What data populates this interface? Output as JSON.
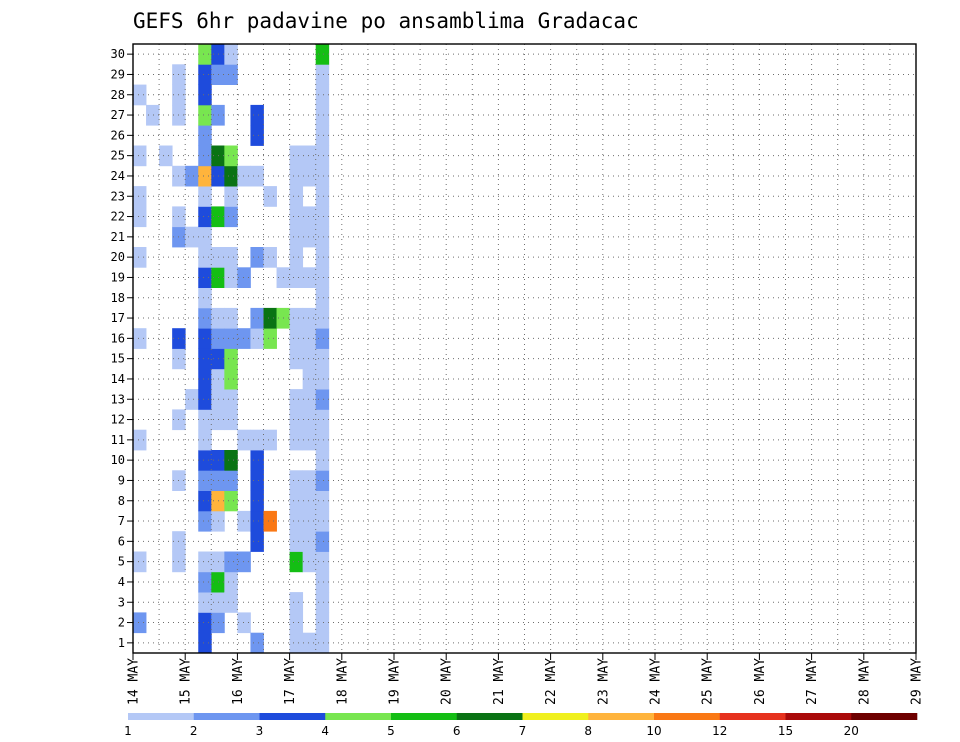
{
  "chart_data": {
    "type": "heatmap",
    "title": "GEFS 6hr padavine po ansamblima Gradacac",
    "xlabel": "",
    "ylabel": "",
    "x_tick_labels": [
      "14 MAY",
      "15 MAY",
      "16 MAY",
      "17 MAY",
      "18 MAY",
      "19 MAY",
      "20 MAY",
      "21 MAY",
      "22 MAY",
      "23 MAY",
      "24 MAY",
      "25 MAY",
      "26 MAY",
      "27 MAY",
      "28 MAY",
      "29 MAY"
    ],
    "y_tick_labels": [
      "1",
      "2",
      "3",
      "4",
      "5",
      "6",
      "7",
      "8",
      "9",
      "10",
      "11",
      "12",
      "13",
      "14",
      "15",
      "16",
      "17",
      "18",
      "19",
      "20",
      "21",
      "22",
      "23",
      "24",
      "25",
      "26",
      "27",
      "28",
      "29",
      "30"
    ],
    "y_range": [
      1,
      30
    ],
    "grid": true,
    "colorbar": {
      "position": "bottom",
      "labels": [
        "1",
        "2",
        "3",
        "4",
        "5",
        "6",
        "7",
        "8",
        "10",
        "12",
        "15",
        "20"
      ],
      "colors": [
        "#b4c8f6",
        "#6e96f0",
        "#1e4bdc",
        "#78e650",
        "#14be14",
        "#0a7314",
        "#f0f01e",
        "#ffb43c",
        "#fa7814",
        "#e6321e",
        "#aa0a0a",
        "#6e0000"
      ]
    },
    "cells": [
      [
        0,
        2,
        2
      ],
      [
        0,
        5,
        1
      ],
      [
        0,
        11,
        1
      ],
      [
        0,
        16,
        1
      ],
      [
        0,
        20,
        1
      ],
      [
        0,
        22,
        1
      ],
      [
        0,
        23,
        1
      ],
      [
        0,
        25,
        1
      ],
      [
        0,
        28,
        1
      ],
      [
        1,
        27,
        1
      ],
      [
        2,
        25,
        1
      ],
      [
        3,
        5,
        1
      ],
      [
        3,
        6,
        1
      ],
      [
        3,
        9,
        1
      ],
      [
        3,
        12,
        1
      ],
      [
        3,
        15,
        1
      ],
      [
        3,
        16,
        3
      ],
      [
        3,
        21,
        2
      ],
      [
        3,
        22,
        1
      ],
      [
        3,
        24,
        1
      ],
      [
        3,
        27,
        1
      ],
      [
        3,
        28,
        1
      ],
      [
        3,
        29,
        1
      ],
      [
        4,
        13,
        1
      ],
      [
        4,
        21,
        1
      ],
      [
        4,
        24,
        2
      ],
      [
        5,
        1,
        3
      ],
      [
        5,
        2,
        3
      ],
      [
        5,
        3,
        1
      ],
      [
        5,
        4,
        2
      ],
      [
        5,
        5,
        1
      ],
      [
        5,
        7,
        2
      ],
      [
        5,
        8,
        3
      ],
      [
        5,
        9,
        2
      ],
      [
        5,
        10,
        3
      ],
      [
        5,
        11,
        1
      ],
      [
        5,
        12,
        1
      ],
      [
        5,
        13,
        3
      ],
      [
        5,
        14,
        3
      ],
      [
        5,
        15,
        3
      ],
      [
        5,
        16,
        3
      ],
      [
        5,
        17,
        2
      ],
      [
        5,
        18,
        1
      ],
      [
        5,
        19,
        3
      ],
      [
        5,
        20,
        1
      ],
      [
        5,
        21,
        1
      ],
      [
        5,
        22,
        3
      ],
      [
        5,
        23,
        1
      ],
      [
        5,
        24,
        8
      ],
      [
        5,
        25,
        2
      ],
      [
        5,
        26,
        2
      ],
      [
        5,
        27,
        4
      ],
      [
        5,
        28,
        3
      ],
      [
        5,
        29,
        3
      ],
      [
        5,
        30,
        4
      ],
      [
        6,
        2,
        2
      ],
      [
        6,
        3,
        1
      ],
      [
        6,
        4,
        5
      ],
      [
        6,
        5,
        1
      ],
      [
        6,
        7,
        1
      ],
      [
        6,
        8,
        8
      ],
      [
        6,
        9,
        2
      ],
      [
        6,
        10,
        3
      ],
      [
        6,
        12,
        1
      ],
      [
        6,
        13,
        1
      ],
      [
        6,
        14,
        1
      ],
      [
        6,
        15,
        3
      ],
      [
        6,
        16,
        2
      ],
      [
        6,
        17,
        1
      ],
      [
        6,
        19,
        5
      ],
      [
        6,
        20,
        1
      ],
      [
        6,
        22,
        5
      ],
      [
        6,
        24,
        3
      ],
      [
        6,
        25,
        6
      ],
      [
        6,
        27,
        2
      ],
      [
        6,
        29,
        2
      ],
      [
        6,
        30,
        3
      ],
      [
        7,
        3,
        1
      ],
      [
        7,
        4,
        1
      ],
      [
        7,
        5,
        2
      ],
      [
        7,
        8,
        4
      ],
      [
        7,
        9,
        2
      ],
      [
        7,
        10,
        6
      ],
      [
        7,
        12,
        1
      ],
      [
        7,
        13,
        1
      ],
      [
        7,
        14,
        4
      ],
      [
        7,
        15,
        4
      ],
      [
        7,
        16,
        2
      ],
      [
        7,
        17,
        1
      ],
      [
        7,
        19,
        1
      ],
      [
        7,
        20,
        1
      ],
      [
        7,
        22,
        2
      ],
      [
        7,
        23,
        1
      ],
      [
        7,
        24,
        6
      ],
      [
        7,
        25,
        4
      ],
      [
        7,
        29,
        2
      ],
      [
        7,
        30,
        1
      ],
      [
        8,
        2,
        1
      ],
      [
        8,
        5,
        2
      ],
      [
        8,
        7,
        1
      ],
      [
        8,
        11,
        1
      ],
      [
        8,
        16,
        2
      ],
      [
        8,
        19,
        2
      ],
      [
        8,
        24,
        1
      ],
      [
        9,
        1,
        2
      ],
      [
        9,
        6,
        3
      ],
      [
        9,
        7,
        3
      ],
      [
        9,
        8,
        3
      ],
      [
        9,
        9,
        3
      ],
      [
        9,
        10,
        3
      ],
      [
        9,
        11,
        1
      ],
      [
        9,
        16,
        1
      ],
      [
        9,
        17,
        2
      ],
      [
        9,
        20,
        2
      ],
      [
        9,
        24,
        1
      ],
      [
        9,
        26,
        3
      ],
      [
        9,
        27,
        3
      ],
      [
        10,
        7,
        9
      ],
      [
        10,
        11,
        1
      ],
      [
        10,
        16,
        4
      ],
      [
        10,
        17,
        6
      ],
      [
        10,
        20,
        1
      ],
      [
        10,
        23,
        1
      ],
      [
        11,
        17,
        4
      ],
      [
        11,
        19,
        1
      ],
      [
        12,
        1,
        1
      ],
      [
        12,
        2,
        1
      ],
      [
        12,
        3,
        1
      ],
      [
        12,
        5,
        5
      ],
      [
        12,
        6,
        1
      ],
      [
        12,
        7,
        1
      ],
      [
        12,
        8,
        1
      ],
      [
        12,
        9,
        1
      ],
      [
        12,
        11,
        1
      ],
      [
        12,
        12,
        1
      ],
      [
        12,
        13,
        1
      ],
      [
        12,
        15,
        1
      ],
      [
        12,
        16,
        1
      ],
      [
        12,
        17,
        1
      ],
      [
        12,
        19,
        1
      ],
      [
        12,
        20,
        1
      ],
      [
        12,
        21,
        1
      ],
      [
        12,
        22,
        1
      ],
      [
        12,
        23,
        1
      ],
      [
        12,
        24,
        1
      ],
      [
        12,
        25,
        1
      ],
      [
        13,
        1,
        1
      ],
      [
        13,
        5,
        1
      ],
      [
        13,
        6,
        1
      ],
      [
        13,
        7,
        1
      ],
      [
        13,
        8,
        1
      ],
      [
        13,
        9,
        1
      ],
      [
        13,
        11,
        1
      ],
      [
        13,
        12,
        1
      ],
      [
        13,
        13,
        1
      ],
      [
        13,
        14,
        1
      ],
      [
        13,
        15,
        1
      ],
      [
        13,
        16,
        1
      ],
      [
        13,
        17,
        1
      ],
      [
        13,
        19,
        1
      ],
      [
        13,
        21,
        1
      ],
      [
        13,
        22,
        1
      ],
      [
        13,
        24,
        1
      ],
      [
        13,
        25,
        1
      ],
      [
        14,
        1,
        1
      ],
      [
        14,
        2,
        1
      ],
      [
        14,
        3,
        1
      ],
      [
        14,
        4,
        1
      ],
      [
        14,
        5,
        1
      ],
      [
        14,
        6,
        2
      ],
      [
        14,
        7,
        1
      ],
      [
        14,
        8,
        1
      ],
      [
        14,
        9,
        2
      ],
      [
        14,
        10,
        1
      ],
      [
        14,
        11,
        1
      ],
      [
        14,
        12,
        1
      ],
      [
        14,
        13,
        2
      ],
      [
        14,
        14,
        1
      ],
      [
        14,
        15,
        1
      ],
      [
        14,
        16,
        2
      ],
      [
        14,
        17,
        1
      ],
      [
        14,
        18,
        1
      ],
      [
        14,
        19,
        1
      ],
      [
        14,
        20,
        1
      ],
      [
        14,
        21,
        1
      ],
      [
        14,
        22,
        1
      ],
      [
        14,
        23,
        1
      ],
      [
        14,
        24,
        1
      ],
      [
        14,
        25,
        1
      ],
      [
        14,
        26,
        1
      ],
      [
        14,
        27,
        1
      ],
      [
        14,
        28,
        1
      ],
      [
        14,
        29,
        1
      ],
      [
        14,
        30,
        5
      ]
    ]
  }
}
